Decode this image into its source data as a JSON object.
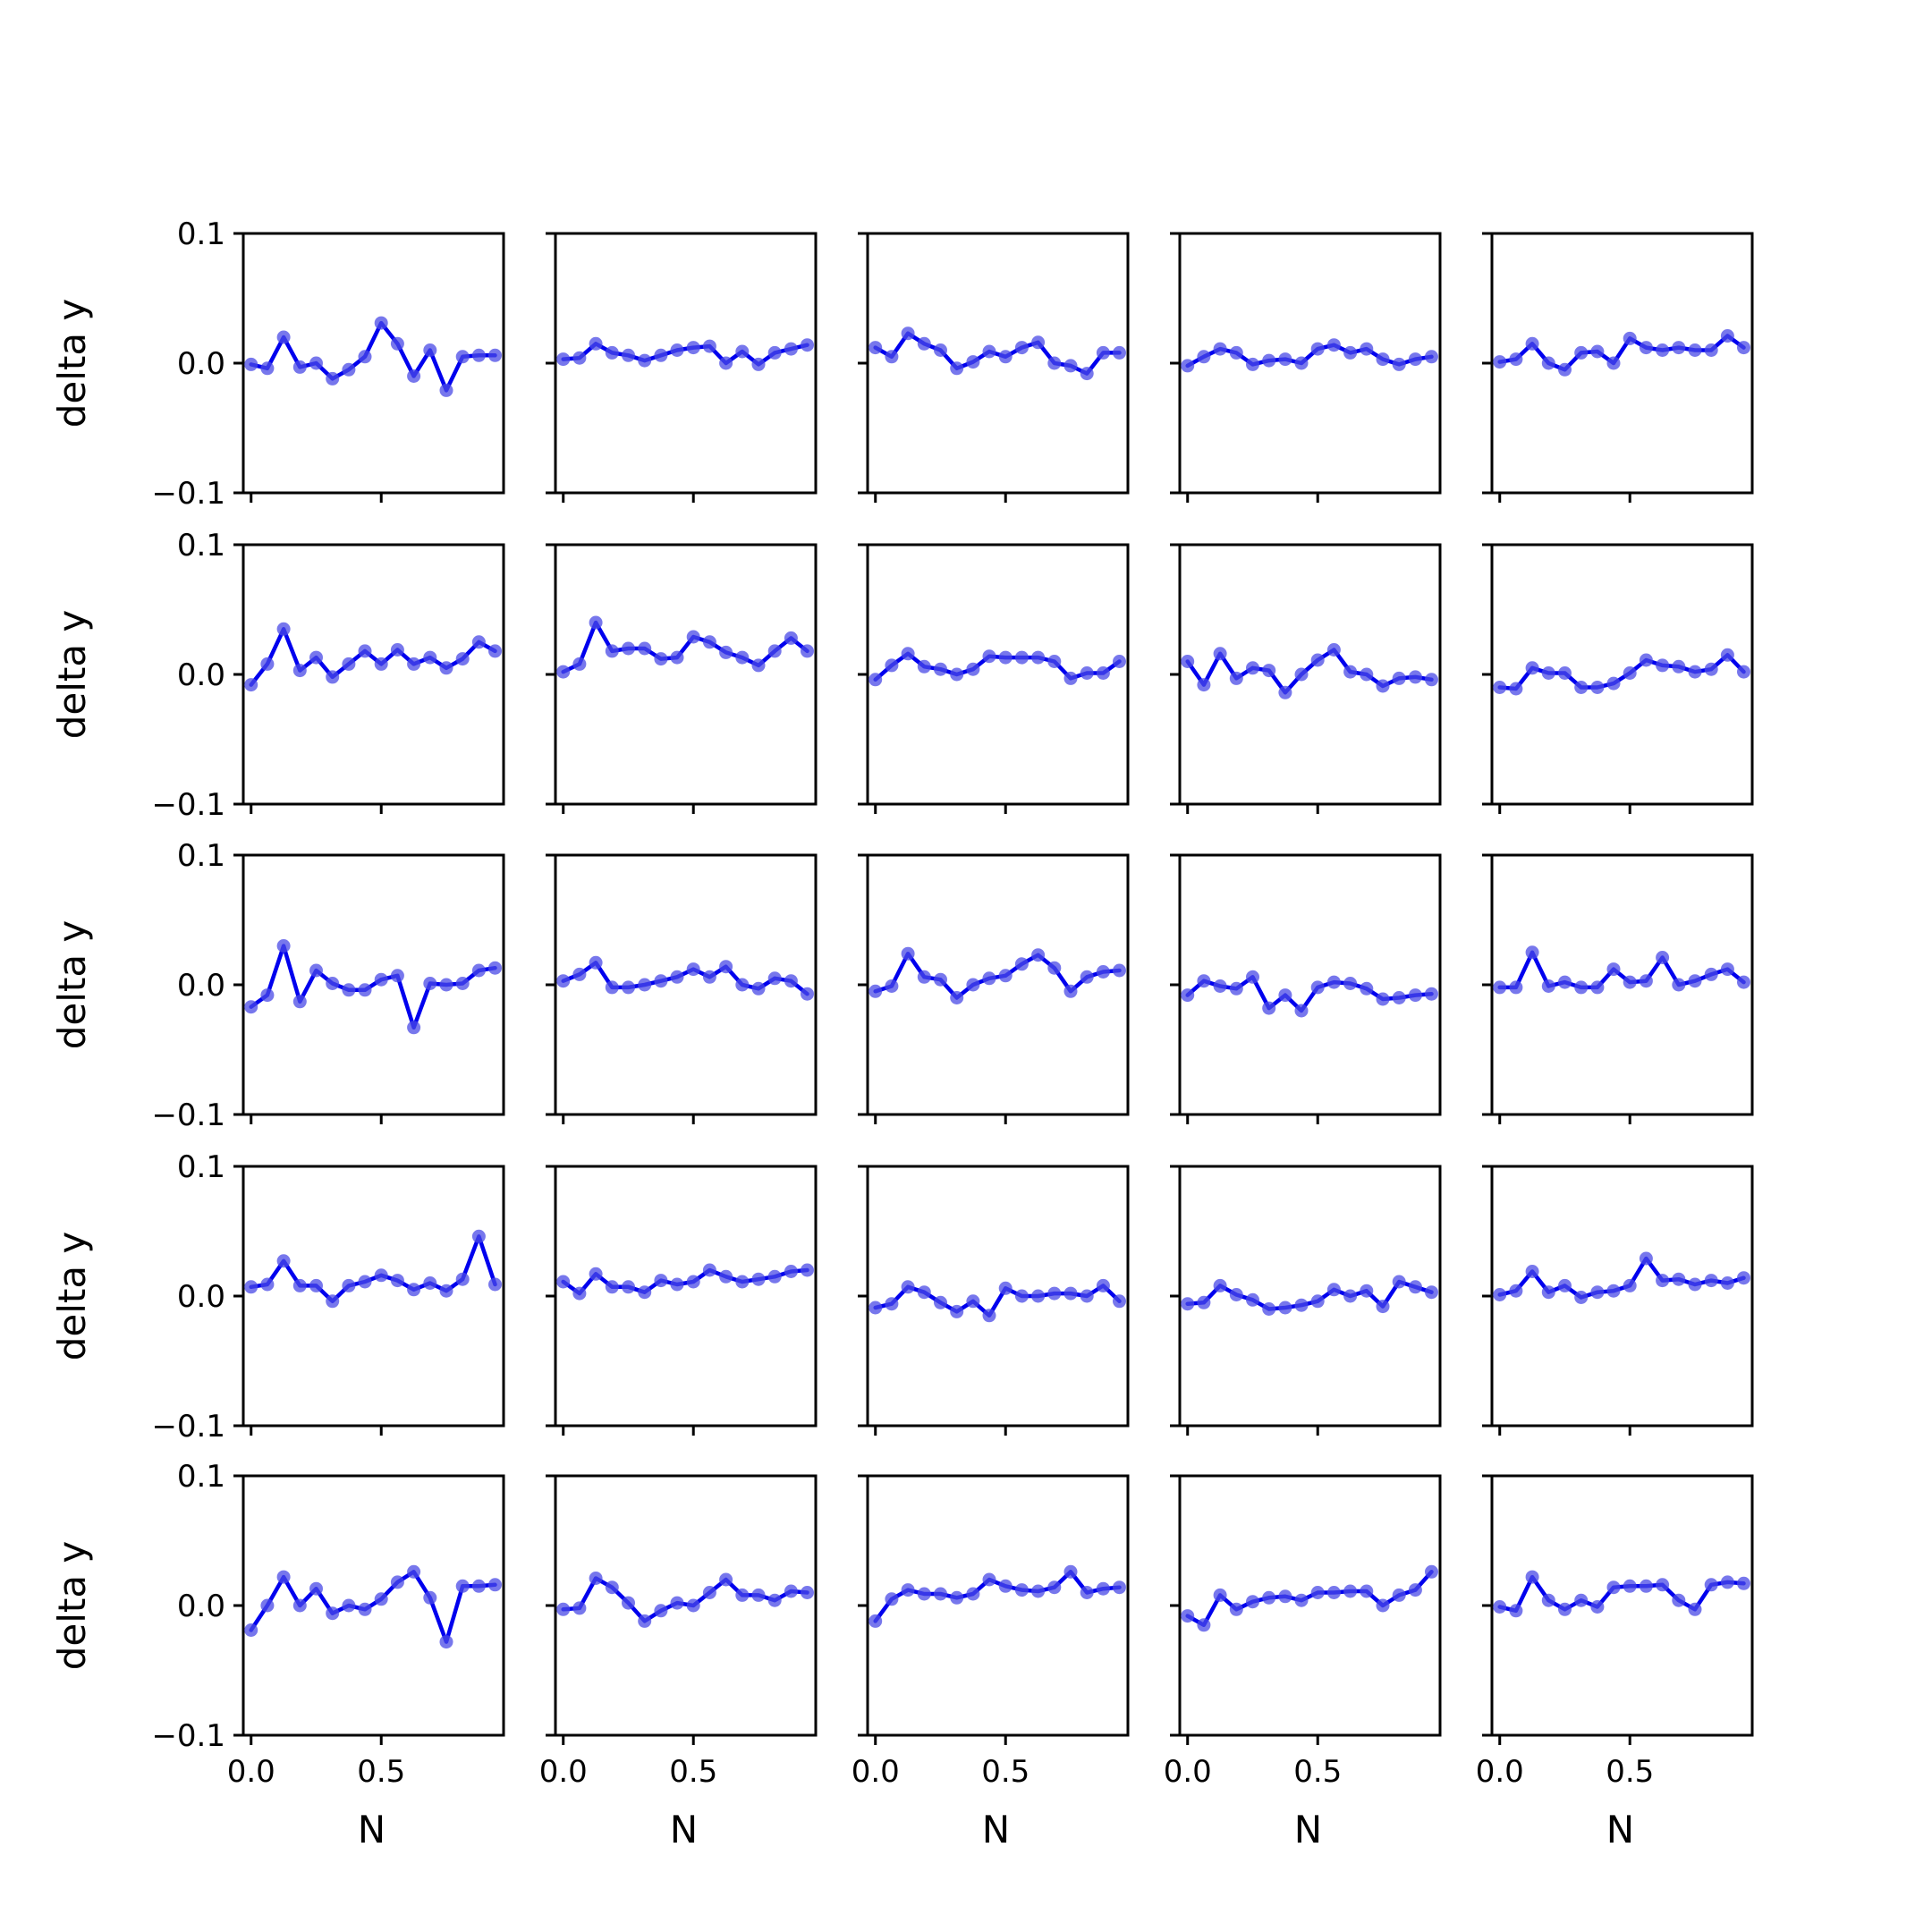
{
  "figure": {
    "line_color": "#0000ee",
    "marker_color": "#4a4ae6",
    "rows": 5,
    "cols": 5
  },
  "chart_data": {
    "type": "line",
    "xlabel": "N",
    "ylabel": "delta y",
    "xlim": [
      -0.03,
      0.97
    ],
    "ylim": [
      -0.1,
      0.1
    ],
    "x_ticks": [
      0.0,
      0.5
    ],
    "x_tick_labels": [
      "0.0",
      "0.5"
    ],
    "y_ticks": [
      0.1,
      0.0,
      -0.1
    ],
    "y_tick_labels": [
      "0.1",
      "0.0",
      "−0.1"
    ],
    "x": [
      0.0,
      0.0625,
      0.125,
      0.1875,
      0.25,
      0.3125,
      0.375,
      0.4375,
      0.5,
      0.5625,
      0.625,
      0.6875,
      0.75,
      0.8125,
      0.875,
      0.9375
    ],
    "panels": [
      {
        "row": 0,
        "col": 0,
        "values": [
          -0.001,
          -0.004,
          0.02,
          -0.003,
          0.0,
          -0.012,
          -0.005,
          0.005,
          0.031,
          0.015,
          -0.01,
          0.01,
          -0.021,
          0.005,
          0.006,
          0.006
        ]
      },
      {
        "row": 0,
        "col": 1,
        "values": [
          0.003,
          0.004,
          0.015,
          0.008,
          0.006,
          0.002,
          0.006,
          0.01,
          0.012,
          0.013,
          0.0,
          0.009,
          -0.001,
          0.008,
          0.011,
          0.014
        ]
      },
      {
        "row": 0,
        "col": 2,
        "values": [
          0.012,
          0.005,
          0.023,
          0.015,
          0.01,
          -0.004,
          0.001,
          0.009,
          0.005,
          0.012,
          0.016,
          0.0,
          -0.002,
          -0.008,
          0.008,
          0.008
        ]
      },
      {
        "row": 0,
        "col": 3,
        "values": [
          -0.002,
          0.005,
          0.011,
          0.008,
          -0.001,
          0.002,
          0.003,
          0.0,
          0.011,
          0.014,
          0.008,
          0.011,
          0.003,
          -0.001,
          0.003,
          0.005
        ]
      },
      {
        "row": 0,
        "col": 4,
        "values": [
          0.001,
          0.003,
          0.015,
          0.0,
          -0.005,
          0.008,
          0.009,
          0.0,
          0.019,
          0.012,
          0.01,
          0.012,
          0.01,
          0.01,
          0.021,
          0.012
        ]
      },
      {
        "row": 1,
        "col": 0,
        "values": [
          -0.008,
          0.008,
          0.035,
          0.003,
          0.013,
          -0.002,
          0.008,
          0.018,
          0.008,
          0.019,
          0.008,
          0.013,
          0.005,
          0.012,
          0.025,
          0.018
        ]
      },
      {
        "row": 1,
        "col": 1,
        "values": [
          0.002,
          0.008,
          0.04,
          0.018,
          0.02,
          0.02,
          0.012,
          0.013,
          0.029,
          0.025,
          0.017,
          0.013,
          0.007,
          0.018,
          0.028,
          0.018
        ]
      },
      {
        "row": 1,
        "col": 2,
        "values": [
          -0.004,
          0.007,
          0.016,
          0.006,
          0.004,
          0.0,
          0.004,
          0.014,
          0.013,
          0.013,
          0.013,
          0.01,
          -0.003,
          0.001,
          0.001,
          0.01
        ]
      },
      {
        "row": 1,
        "col": 3,
        "values": [
          0.01,
          -0.008,
          0.016,
          -0.003,
          0.005,
          0.003,
          -0.014,
          0.0,
          0.011,
          0.019,
          0.002,
          0.0,
          -0.009,
          -0.003,
          -0.002,
          -0.004
        ]
      },
      {
        "row": 1,
        "col": 4,
        "values": [
          -0.01,
          -0.011,
          0.005,
          0.001,
          0.001,
          -0.01,
          -0.01,
          -0.007,
          0.001,
          0.011,
          0.007,
          0.006,
          0.002,
          0.004,
          0.015,
          0.002
        ]
      },
      {
        "row": 2,
        "col": 0,
        "values": [
          -0.017,
          -0.008,
          0.03,
          -0.013,
          0.011,
          0.001,
          -0.004,
          -0.004,
          0.004,
          0.007,
          -0.033,
          0.001,
          0.0,
          0.001,
          0.011,
          0.013
        ]
      },
      {
        "row": 2,
        "col": 1,
        "values": [
          0.003,
          0.008,
          0.017,
          -0.002,
          -0.002,
          0.0,
          0.003,
          0.006,
          0.012,
          0.006,
          0.014,
          0.0,
          -0.003,
          0.005,
          0.003,
          -0.007
        ]
      },
      {
        "row": 2,
        "col": 2,
        "values": [
          -0.005,
          -0.001,
          0.024,
          0.006,
          0.004,
          -0.01,
          0.0,
          0.005,
          0.007,
          0.016,
          0.023,
          0.013,
          -0.005,
          0.006,
          0.01,
          0.011
        ]
      },
      {
        "row": 2,
        "col": 3,
        "values": [
          -0.008,
          0.003,
          -0.001,
          -0.003,
          0.006,
          -0.018,
          -0.008,
          -0.02,
          -0.002,
          0.002,
          0.001,
          -0.003,
          -0.011,
          -0.01,
          -0.008,
          -0.007
        ]
      },
      {
        "row": 2,
        "col": 4,
        "values": [
          -0.002,
          -0.002,
          0.025,
          -0.001,
          0.002,
          -0.002,
          -0.002,
          0.012,
          0.002,
          0.003,
          0.021,
          0.0,
          0.003,
          0.008,
          0.012,
          0.002
        ]
      },
      {
        "row": 3,
        "col": 0,
        "values": [
          0.007,
          0.009,
          0.027,
          0.008,
          0.008,
          -0.004,
          0.008,
          0.011,
          0.016,
          0.012,
          0.005,
          0.01,
          0.004,
          0.013,
          0.046,
          0.009
        ]
      },
      {
        "row": 3,
        "col": 1,
        "values": [
          0.011,
          0.002,
          0.017,
          0.007,
          0.007,
          0.003,
          0.012,
          0.009,
          0.011,
          0.02,
          0.015,
          0.011,
          0.013,
          0.015,
          0.019,
          0.02
        ]
      },
      {
        "row": 3,
        "col": 2,
        "values": [
          -0.009,
          -0.006,
          0.007,
          0.003,
          -0.005,
          -0.012,
          -0.004,
          -0.015,
          0.006,
          0.0,
          0.0,
          0.002,
          0.002,
          0.0,
          0.008,
          -0.004
        ]
      },
      {
        "row": 3,
        "col": 3,
        "values": [
          -0.006,
          -0.005,
          0.008,
          0.001,
          -0.003,
          -0.01,
          -0.009,
          -0.007,
          -0.004,
          0.005,
          0.0,
          0.004,
          -0.008,
          0.011,
          0.007,
          0.003
        ]
      },
      {
        "row": 3,
        "col": 4,
        "values": [
          0.001,
          0.004,
          0.019,
          0.003,
          0.008,
          -0.001,
          0.003,
          0.004,
          0.008,
          0.029,
          0.012,
          0.013,
          0.009,
          0.012,
          0.01,
          0.014
        ]
      },
      {
        "row": 4,
        "col": 0,
        "values": [
          -0.019,
          0.0,
          0.022,
          0.0,
          0.013,
          -0.006,
          0.0,
          -0.003,
          0.005,
          0.018,
          0.026,
          0.006,
          -0.028,
          0.015,
          0.015,
          0.016
        ]
      },
      {
        "row": 4,
        "col": 1,
        "values": [
          -0.003,
          -0.002,
          0.021,
          0.014,
          0.002,
          -0.012,
          -0.004,
          0.002,
          0.0,
          0.01,
          0.02,
          0.008,
          0.008,
          0.004,
          0.011,
          0.01
        ]
      },
      {
        "row": 4,
        "col": 2,
        "values": [
          -0.012,
          0.005,
          0.012,
          0.009,
          0.009,
          0.006,
          0.009,
          0.02,
          0.015,
          0.012,
          0.011,
          0.014,
          0.026,
          0.01,
          0.013,
          0.014
        ]
      },
      {
        "row": 4,
        "col": 3,
        "values": [
          -0.008,
          -0.015,
          0.008,
          -0.003,
          0.003,
          0.006,
          0.007,
          0.004,
          0.01,
          0.01,
          0.011,
          0.011,
          0.0,
          0.008,
          0.012,
          0.026
        ]
      },
      {
        "row": 4,
        "col": 4,
        "values": [
          -0.001,
          -0.004,
          0.022,
          0.004,
          -0.003,
          0.004,
          -0.001,
          0.014,
          0.015,
          0.015,
          0.016,
          0.004,
          -0.003,
          0.016,
          0.018,
          0.017
        ]
      }
    ]
  }
}
